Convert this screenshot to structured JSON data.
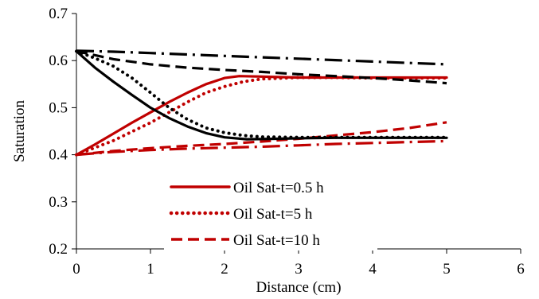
{
  "chart_data": {
    "type": "line",
    "title": "",
    "xlabel": "Distance (cm)",
    "ylabel": "Saturation",
    "xlim": [
      0,
      6
    ],
    "ylim": [
      0.2,
      0.7
    ],
    "x_ticks": [
      "0",
      "1",
      "2",
      "3",
      "4",
      "5",
      "6"
    ],
    "y_ticks": [
      "0.2",
      "0.3",
      "0.4",
      "0.5",
      "0.6",
      "0.7"
    ],
    "grid": false,
    "legend_position": "lower-center",
    "series": [
      {
        "name": "Oil Sat-t=0.5 h",
        "color": "#c00000",
        "dash": "solid",
        "in_legend": true,
        "x": [
          0,
          0.25,
          0.5,
          0.75,
          1,
          1.25,
          1.5,
          1.75,
          2,
          2.2,
          2.5,
          3,
          3.5,
          4,
          4.5,
          5
        ],
        "y": [
          0.4,
          0.422,
          0.445,
          0.468,
          0.49,
          0.512,
          0.532,
          0.55,
          0.563,
          0.567,
          0.566,
          0.564,
          0.564,
          0.564,
          0.564,
          0.564
        ]
      },
      {
        "name": "Oil Sat-t=5 h",
        "color": "#c00000",
        "dash": "dotted",
        "in_legend": true,
        "x": [
          0,
          0.5,
          1,
          1.25,
          1.5,
          1.75,
          2,
          2.25,
          2.5,
          3,
          3.5,
          4,
          4.5,
          5
        ],
        "y": [
          0.4,
          0.43,
          0.468,
          0.49,
          0.512,
          0.532,
          0.545,
          0.555,
          0.561,
          0.564,
          0.564,
          0.563,
          0.563,
          0.563
        ]
      },
      {
        "name": "Oil Sat-t=10 h",
        "color": "#c00000",
        "dash": "dashed",
        "in_legend": true,
        "x": [
          0,
          0.5,
          1,
          1.5,
          2,
          2.5,
          3,
          3.5,
          4,
          4.5,
          5
        ],
        "y": [
          0.4,
          0.408,
          0.414,
          0.419,
          0.423,
          0.428,
          0.434,
          0.441,
          0.448,
          0.457,
          0.469
        ]
      },
      {
        "name": "",
        "color": "#c00000",
        "dash": "dashdot",
        "in_legend": false,
        "x": [
          0,
          0.5,
          1,
          1.5,
          2,
          2.5,
          3,
          3.5,
          4,
          4.5,
          5
        ],
        "y": [
          0.4,
          0.406,
          0.41,
          0.413,
          0.415,
          0.417,
          0.42,
          0.423,
          0.425,
          0.427,
          0.429
        ]
      },
      {
        "name": "",
        "color": "#000000",
        "dash": "solid",
        "in_legend": false,
        "x": [
          0,
          0.25,
          0.5,
          0.75,
          1,
          1.25,
          1.5,
          1.75,
          2,
          2.3,
          2.7,
          3,
          3.5,
          4,
          4.5,
          5
        ],
        "y": [
          0.62,
          0.585,
          0.555,
          0.527,
          0.5,
          0.478,
          0.46,
          0.446,
          0.437,
          0.433,
          0.434,
          0.435,
          0.436,
          0.436,
          0.436,
          0.436
        ]
      },
      {
        "name": "",
        "color": "#000000",
        "dash": "dotted",
        "in_legend": false,
        "x": [
          0,
          0.25,
          0.5,
          0.75,
          1,
          1.25,
          1.5,
          1.75,
          2,
          2.25,
          2.5,
          3,
          3.5,
          4,
          4.5,
          5
        ],
        "y": [
          0.62,
          0.605,
          0.588,
          0.563,
          0.532,
          0.5,
          0.475,
          0.457,
          0.447,
          0.441,
          0.438,
          0.437,
          0.437,
          0.437,
          0.437,
          0.437
        ]
      },
      {
        "name": "",
        "color": "#000000",
        "dash": "dashed",
        "in_legend": false,
        "x": [
          0,
          0.5,
          1,
          1.5,
          2,
          2.5,
          3,
          3.5,
          4,
          4.5,
          5
        ],
        "y": [
          0.62,
          0.603,
          0.592,
          0.585,
          0.58,
          0.576,
          0.571,
          0.567,
          0.563,
          0.558,
          0.552
        ]
      },
      {
        "name": "",
        "color": "#000000",
        "dash": "dashdot",
        "in_legend": false,
        "x": [
          0,
          0.5,
          1,
          1.5,
          2,
          2.5,
          3,
          3.5,
          4,
          4.5,
          5
        ],
        "y": [
          0.621,
          0.619,
          0.616,
          0.613,
          0.61,
          0.607,
          0.604,
          0.601,
          0.598,
          0.595,
          0.592
        ]
      }
    ]
  }
}
